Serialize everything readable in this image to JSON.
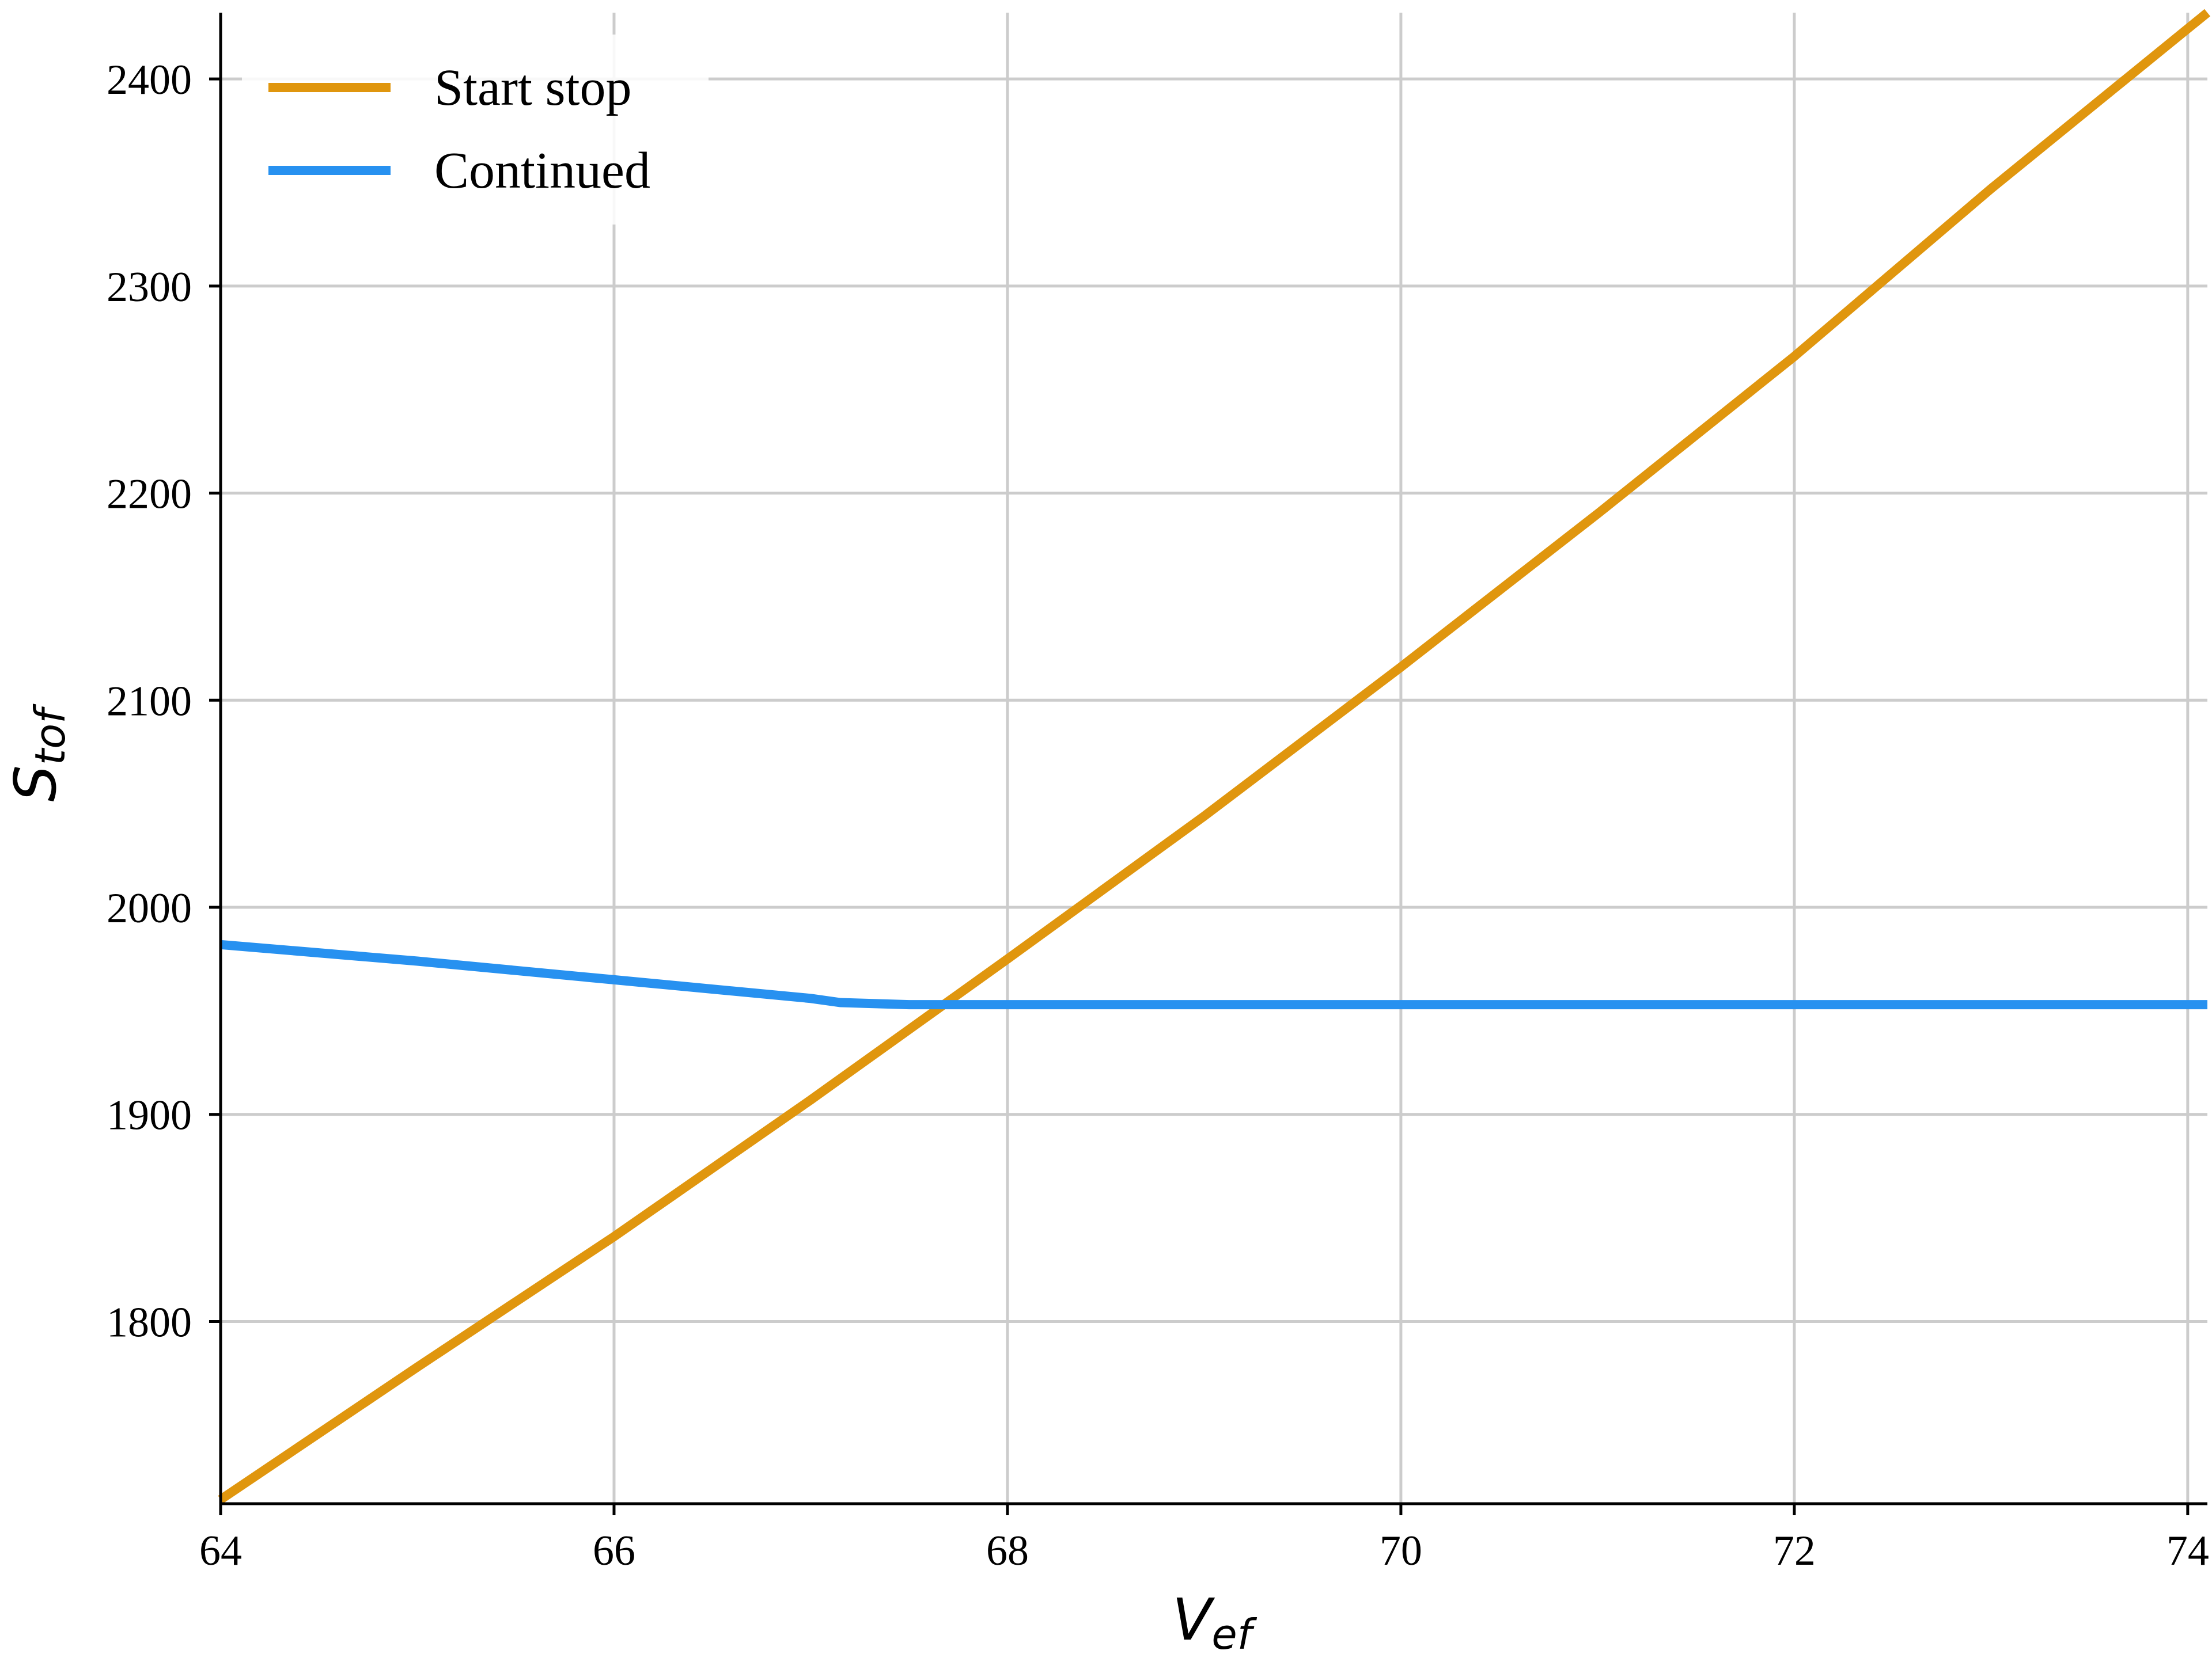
{
  "chart_data": {
    "type": "line",
    "title": "",
    "xlabel": {
      "base": "V",
      "sub": "ef"
    },
    "ylabel": {
      "base": "S",
      "sub": "tof"
    },
    "xlim": [
      64,
      74.1
    ],
    "ylim": [
      1712,
      2432
    ],
    "xticks": [
      64,
      66,
      68,
      70,
      72,
      74
    ],
    "yticks": [
      1800,
      1900,
      2000,
      2100,
      2200,
      2300,
      2400
    ],
    "grid": true,
    "legend": {
      "position": "top-left"
    },
    "series": [
      {
        "name": "Start stop",
        "color": "#E0960E",
        "x": [
          64,
          65,
          66,
          67,
          68,
          69,
          70,
          71,
          72,
          73,
          74.1
        ],
        "y": [
          1714,
          1778,
          1841,
          1907,
          1975,
          2044,
          2116,
          2190,
          2266,
          2347,
          2432
        ]
      },
      {
        "name": "Continued",
        "color": "#2791F0",
        "x": [
          64,
          65,
          66,
          67,
          67.15,
          67.5,
          68,
          69,
          70,
          71,
          72,
          73,
          74.1
        ],
        "y": [
          1982,
          1974,
          1965,
          1956,
          1954,
          1953,
          1953,
          1953,
          1953,
          1953,
          1953,
          1953,
          1953
        ]
      }
    ]
  }
}
